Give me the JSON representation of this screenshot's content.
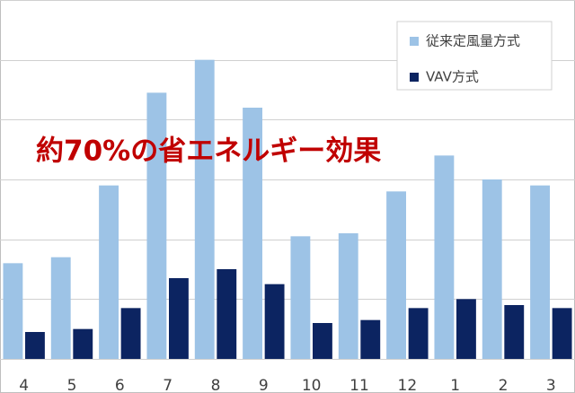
{
  "chart_data": {
    "type": "bar",
    "categories": [
      "4",
      "5",
      "6",
      "7",
      "8",
      "9",
      "10",
      "11",
      "12",
      "1",
      "2",
      "3"
    ],
    "series": [
      {
        "name": "従来定風量方式",
        "color": "#9dc3e6",
        "values": [
          1.6,
          1.7,
          2.9,
          4.45,
          5.0,
          4.2,
          2.05,
          2.1,
          2.8,
          3.4,
          3.0,
          2.9
        ]
      },
      {
        "name": "VAV方式",
        "color": "#0c2461",
        "values": [
          0.45,
          0.5,
          0.85,
          1.35,
          1.5,
          1.25,
          0.6,
          0.65,
          0.85,
          1.0,
          0.9,
          0.85
        ]
      }
    ],
    "ylim": [
      0,
      6
    ],
    "yticks": [
      0,
      1,
      2,
      3,
      4,
      5,
      6
    ],
    "grid": true,
    "annotation": "約70%の省エネルギー効果",
    "legend": "top-right"
  }
}
